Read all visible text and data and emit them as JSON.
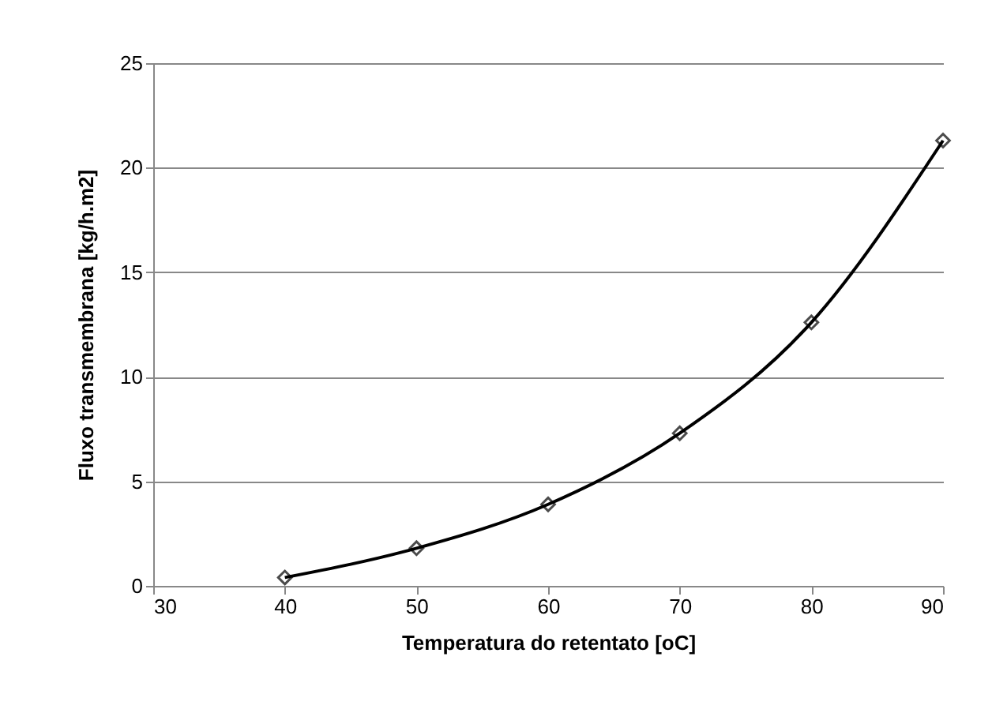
{
  "chart_data": {
    "type": "line",
    "xlabel": "Temperatura do retentato [oC]",
    "ylabel": "Fluxo transmembrana [kg/h.m2]",
    "x": [
      40,
      50,
      60,
      70,
      80,
      90
    ],
    "series": [
      {
        "color": "#000000",
        "values": [
          0.4,
          1.8,
          3.9,
          7.3,
          12.6,
          21.3
        ]
      }
    ],
    "xlim": [
      30,
      90
    ],
    "xticks": [
      30,
      40,
      50,
      60,
      70,
      80,
      90
    ],
    "ylim": [
      0,
      25
    ],
    "yticks": [
      0,
      5,
      10,
      15,
      20,
      25
    ],
    "grid": "y",
    "marker": "diamond",
    "line_style": "solid",
    "legend": false
  }
}
